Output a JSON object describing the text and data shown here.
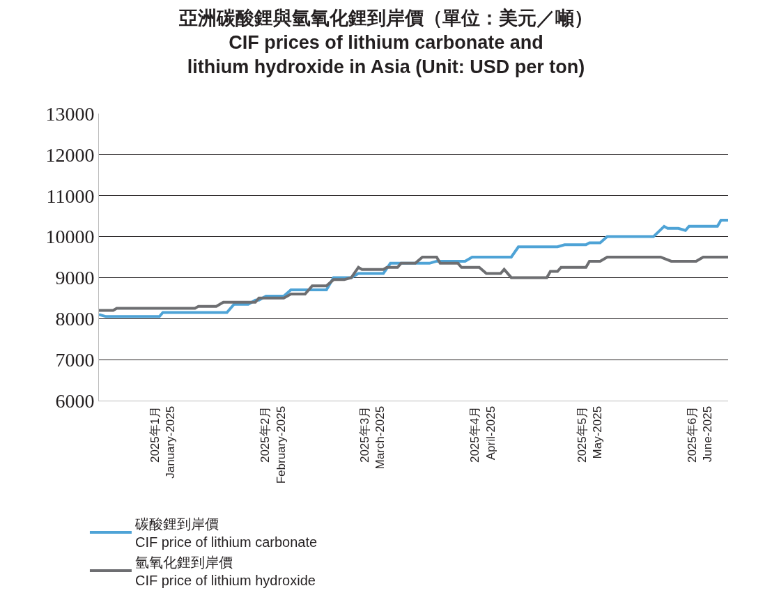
{
  "chart_data": {
    "type": "line",
    "title": "亞洲碳酸鋰與氫氧化鋰到岸價（單位：美元／噸）\nCIF prices of lithium carbonate and\nlithium hydroxide in Asia (Unit: USD per ton)",
    "series": [
      {
        "name": "碳酸鋰到岸價\nCIF price of lithium carbonate",
        "color": "#4ea3d6",
        "x": [
          "2024-12-14",
          "2024-12-16",
          "2024-12-31",
          "2025-01-01",
          "2025-01-19",
          "2025-01-21",
          "2025-01-25",
          "2025-01-27",
          "2025-01-28",
          "2025-01-30",
          "2025-02-04",
          "2025-02-06",
          "2025-02-16",
          "2025-02-18",
          "2025-02-23",
          "2025-02-25",
          "2025-03-04",
          "2025-03-06",
          "2025-03-17",
          "2025-03-19",
          "2025-03-27",
          "2025-03-29",
          "2025-04-09",
          "2025-04-11",
          "2025-04-22",
          "2025-04-24",
          "2025-04-30",
          "2025-05-01",
          "2025-05-04",
          "2025-05-06",
          "2025-05-19",
          "2025-05-22",
          "2025-05-23",
          "2025-05-26",
          "2025-05-28",
          "2025-05-29",
          "2025-06-06",
          "2025-06-07",
          "2025-06-09"
        ],
        "values": [
          8100,
          8050,
          8050,
          8150,
          8150,
          8350,
          8350,
          8450,
          8450,
          8550,
          8550,
          8700,
          8700,
          9000,
          9000,
          9100,
          9100,
          9350,
          9350,
          9400,
          9400,
          9500,
          9500,
          9750,
          9750,
          9800,
          9800,
          9850,
          9850,
          10000,
          10000,
          10250,
          10200,
          10200,
          10150,
          10250,
          10250,
          10400,
          10400
        ]
      },
      {
        "name": "氫氧化鋰到岸價\nCIF price of lithium hydroxide",
        "color": "#6d6e71",
        "x": [
          "2024-12-14",
          "2024-12-18",
          "2024-12-19",
          "2025-01-10",
          "2025-01-11",
          "2025-01-16",
          "2025-01-18",
          "2025-01-27",
          "2025-01-28",
          "2025-02-04",
          "2025-02-06",
          "2025-02-10",
          "2025-02-12",
          "2025-02-16",
          "2025-02-18",
          "2025-02-21",
          "2025-02-23",
          "2025-02-25",
          "2025-02-26",
          "2025-03-04",
          "2025-03-05",
          "2025-03-08",
          "2025-03-09",
          "2025-03-13",
          "2025-03-15",
          "2025-03-19",
          "2025-03-20",
          "2025-03-25",
          "2025-03-26",
          "2025-03-31",
          "2025-04-02",
          "2025-04-06",
          "2025-04-07",
          "2025-04-09",
          "2025-04-19",
          "2025-04-20",
          "2025-04-22",
          "2025-04-23",
          "2025-04-30",
          "2025-05-01",
          "2025-05-04",
          "2025-05-06",
          "2025-05-21",
          "2025-05-24",
          "2025-05-31",
          "2025-06-02",
          "2025-06-09"
        ],
        "values": [
          8200,
          8200,
          8250,
          8250,
          8300,
          8300,
          8400,
          8400,
          8500,
          8500,
          8600,
          8600,
          8800,
          8800,
          8950,
          8950,
          9000,
          9250,
          9200,
          9200,
          9250,
          9250,
          9350,
          9350,
          9500,
          9500,
          9350,
          9350,
          9250,
          9250,
          9100,
          9100,
          9200,
          9000,
          9000,
          9150,
          9150,
          9250,
          9250,
          9400,
          9400,
          9500,
          9500,
          9400,
          9400,
          9500,
          9500
        ]
      }
    ],
    "xlim": [
      "2024-12-14",
      "2025-06-09"
    ],
    "xticks": [
      {
        "value": "2025-01",
        "label": "2025年1月\nJanuary-2025"
      },
      {
        "value": "2025-02",
        "label": "2025年2月\nFebruary-2025"
      },
      {
        "value": "2025-03",
        "label": "2025年3月\nMarch-2025"
      },
      {
        "value": "2025-04",
        "label": "2025年4月\nApril-2025"
      },
      {
        "value": "2025-05",
        "label": "2025年5月\nMay-2025"
      },
      {
        "value": "2025-06",
        "label": "2025年6月\nJune-2025"
      }
    ],
    "ylim": [
      6000,
      13000
    ],
    "yticks": [
      6000,
      7000,
      8000,
      9000,
      10000,
      11000,
      12000,
      13000
    ],
    "grid": "y",
    "legend": "bottom",
    "marker": "none",
    "line_style": "solid"
  }
}
